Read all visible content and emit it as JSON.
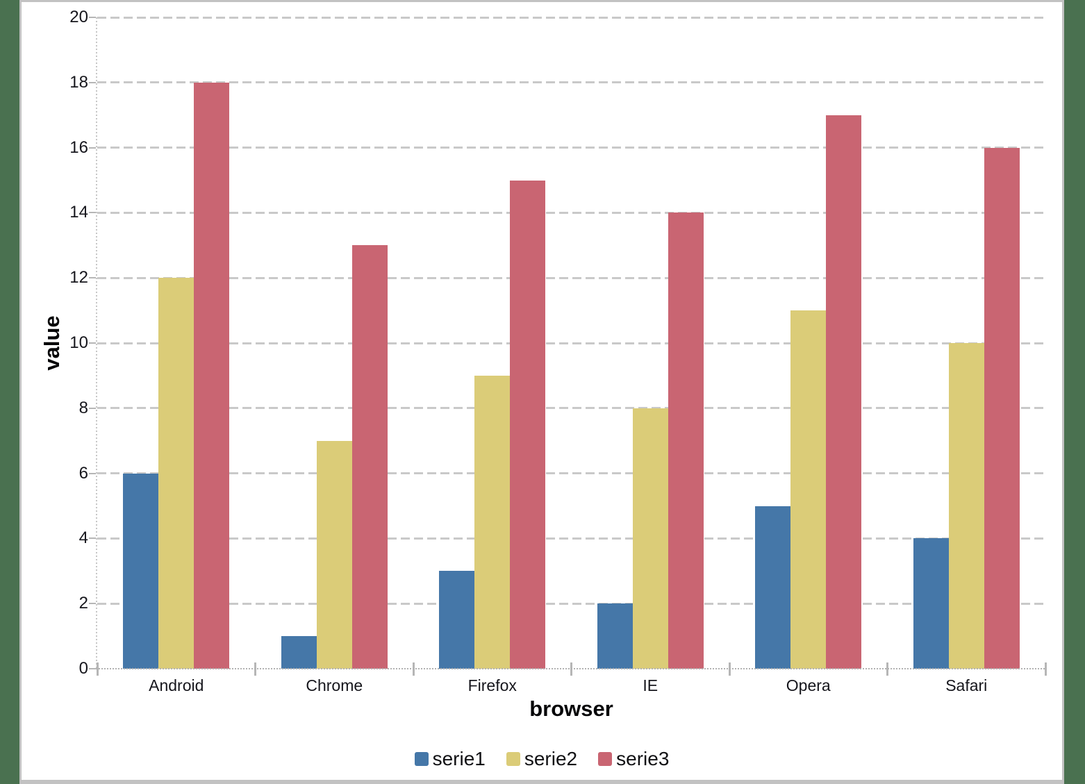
{
  "page": {
    "background_color": "#4a7150",
    "panel_background": "#ffffff",
    "panel_border_color": "#c2c2c2",
    "gridline_color": "#c9c9c9",
    "axis_tick_color": "#b6b6b6",
    "text_color": "#16161c"
  },
  "chart_data": {
    "type": "bar",
    "title": "",
    "xlabel": "browser",
    "ylabel": "value",
    "categories": [
      "Android",
      "Chrome",
      "Firefox",
      "IE",
      "Opera",
      "Safari"
    ],
    "series": [
      {
        "name": "serie1",
        "color": "#4577a8",
        "values": [
          6,
          1,
          3,
          2,
          5,
          4
        ]
      },
      {
        "name": "serie2",
        "color": "#dbcc78",
        "values": [
          12,
          7,
          9,
          8,
          11,
          10
        ]
      },
      {
        "name": "serie3",
        "color": "#c96572",
        "values": [
          18,
          13,
          15,
          14,
          17,
          16
        ]
      }
    ],
    "ylim": [
      0,
      20
    ],
    "ytick_step": 2,
    "ytick_labels": [
      "0",
      "2",
      "4",
      "6",
      "8",
      "10",
      "12",
      "14",
      "16",
      "18",
      "20"
    ],
    "grid": "horizontal-dashed",
    "legend_position": "bottom",
    "legend_entries": [
      "serie1",
      "serie2",
      "serie3"
    ]
  }
}
